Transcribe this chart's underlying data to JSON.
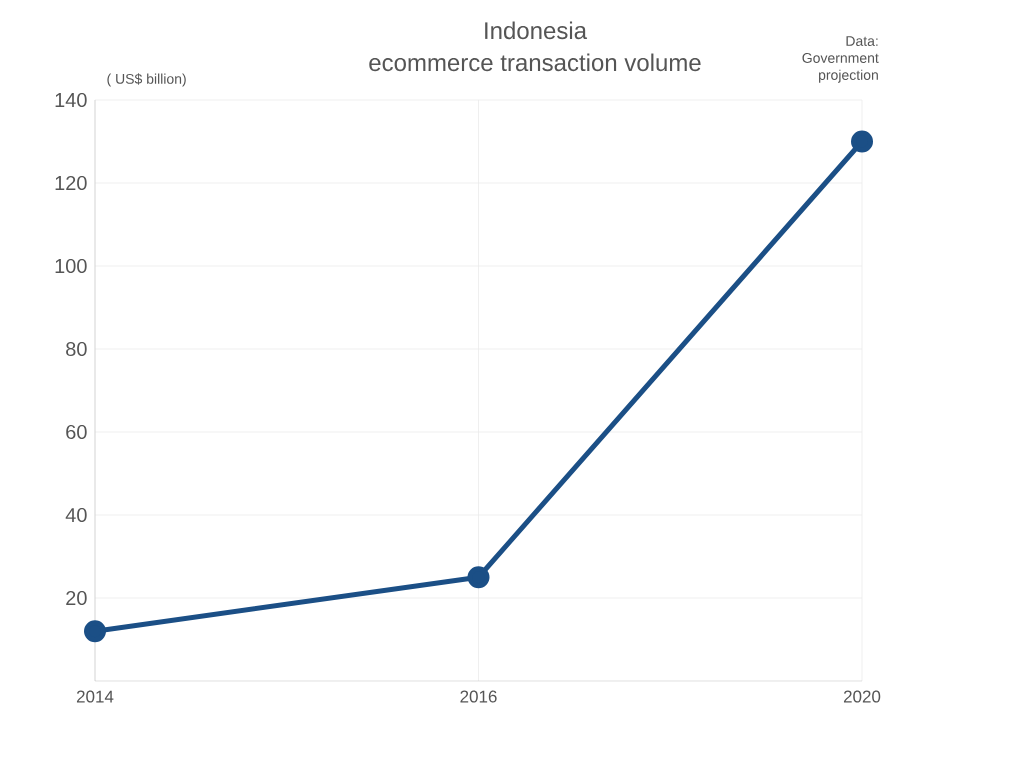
{
  "chart_data": {
    "type": "line",
    "title": "Indonesia",
    "subtitle": "ecommerce transaction volume",
    "ylabel": "( US$ billion)",
    "annotations": [
      "Data: Government projection"
    ],
    "categories": [
      "2014",
      "2016",
      "2020"
    ],
    "series": [
      {
        "color": "#1b4f86",
        "values": [
          12,
          25,
          130
        ]
      }
    ],
    "ylim": [
      0,
      140
    ],
    "yticks": [
      20,
      40,
      60,
      80,
      100,
      120,
      140
    ],
    "grid": true,
    "marker": "circle",
    "line_style": "solid"
  }
}
